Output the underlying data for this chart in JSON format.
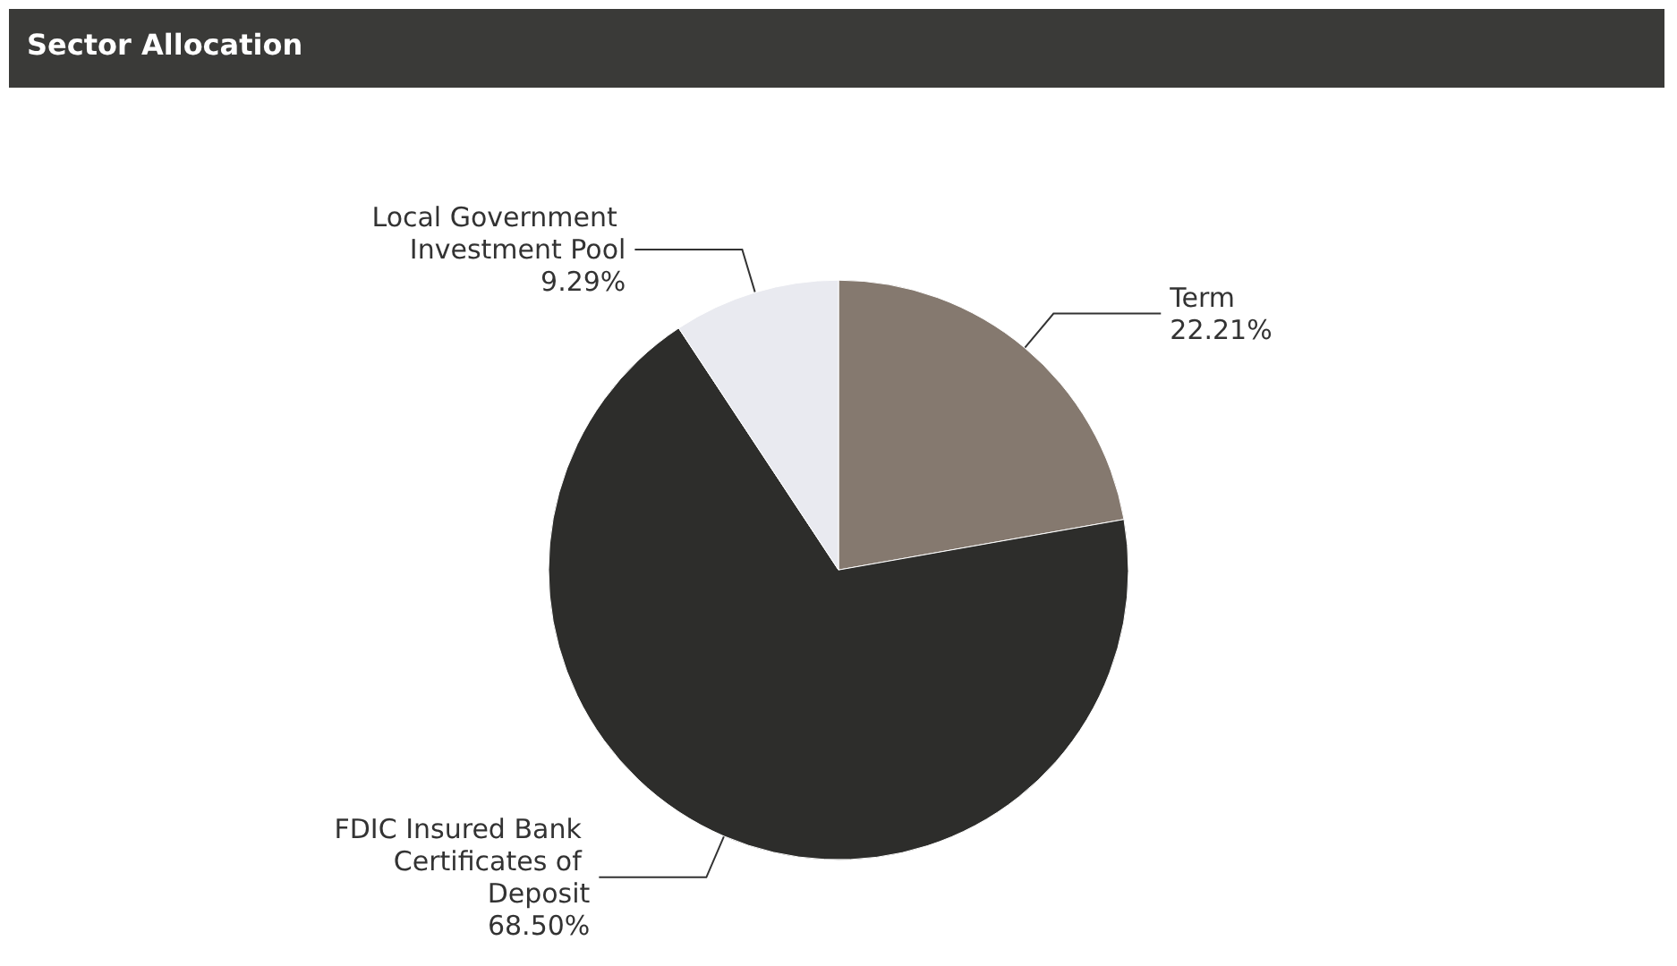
{
  "chart_data": {
    "type": "pie",
    "title": "Sector Allocation",
    "categories": [
      "Term",
      "FDIC Insured Bank Certificates of Deposit",
      "Local Government Investment Pool"
    ],
    "values": [
      22.21,
      68.5,
      9.29
    ],
    "colors": [
      "#85796f",
      "#2d2d2b",
      "#e9eaf0"
    ],
    "value_labels": [
      "22.21%",
      "68.50%",
      "9.29%"
    ],
    "legend": false
  }
}
